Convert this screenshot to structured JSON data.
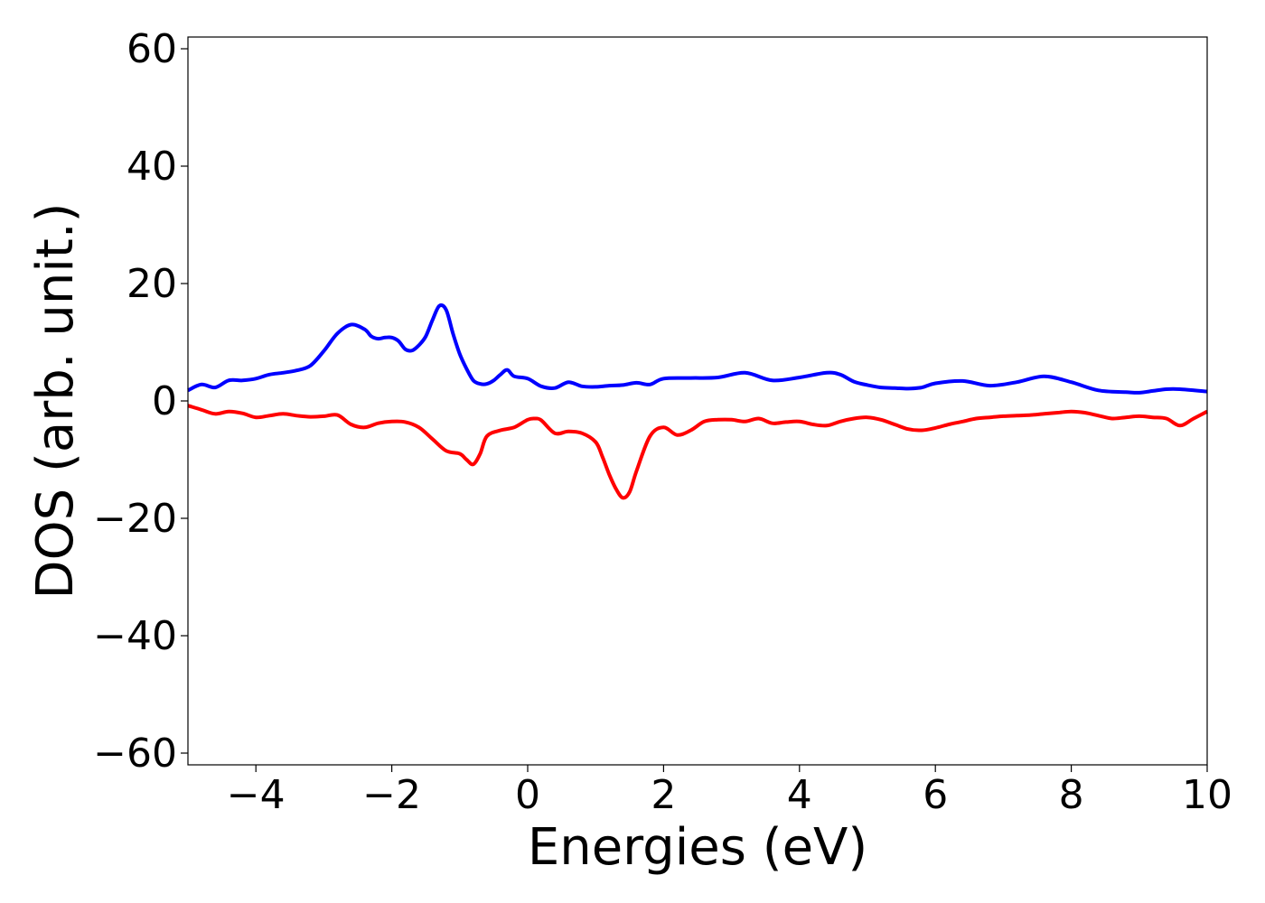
{
  "chart_data": {
    "type": "line",
    "title": "",
    "xlabel": "Energies (eV)",
    "ylabel": "DOS (arb. unit.)",
    "xlim": [
      -5,
      10
    ],
    "ylim": [
      -62,
      62
    ],
    "x_ticks": [
      -4,
      -2,
      0,
      2,
      4,
      6,
      8,
      10
    ],
    "x_tick_labels": [
      "−4",
      "−2",
      "0",
      "2",
      "4",
      "6",
      "8",
      "10"
    ],
    "y_ticks": [
      -60,
      -40,
      -20,
      0,
      20,
      40,
      60
    ],
    "y_tick_labels": [
      "−60",
      "−40",
      "−20",
      "0",
      "20",
      "40",
      "60"
    ],
    "grid": false,
    "series": [
      {
        "color": "#0000ff",
        "x": [
          -5.0,
          -4.8,
          -4.6,
          -4.4,
          -4.2,
          -4.0,
          -3.8,
          -3.6,
          -3.4,
          -3.2,
          -3.0,
          -2.8,
          -2.6,
          -2.4,
          -2.3,
          -2.2,
          -2.1,
          -2.0,
          -1.9,
          -1.8,
          -1.7,
          -1.6,
          -1.5,
          -1.4,
          -1.3,
          -1.2,
          -1.1,
          -1.0,
          -0.9,
          -0.8,
          -0.7,
          -0.6,
          -0.5,
          -0.4,
          -0.3,
          -0.2,
          0.0,
          0.2,
          0.4,
          0.6,
          0.8,
          1.0,
          1.2,
          1.4,
          1.6,
          1.8,
          2.0,
          2.4,
          2.8,
          3.2,
          3.6,
          4.0,
          4.4,
          4.6,
          4.8,
          5.0,
          5.2,
          5.4,
          5.6,
          5.8,
          6.0,
          6.4,
          6.8,
          7.2,
          7.6,
          8.0,
          8.4,
          8.8,
          9.0,
          9.2,
          9.4,
          9.6,
          10.0
        ],
        "values": [
          1.8,
          2.8,
          2.3,
          3.5,
          3.5,
          3.8,
          4.5,
          4.8,
          5.2,
          6.0,
          8.5,
          11.5,
          13.0,
          12.2,
          11.0,
          10.6,
          10.8,
          10.8,
          10.2,
          8.8,
          8.6,
          9.5,
          11.0,
          13.8,
          16.2,
          15.5,
          11.5,
          8.0,
          5.5,
          3.5,
          2.9,
          2.9,
          3.5,
          4.5,
          5.3,
          4.2,
          3.8,
          2.5,
          2.2,
          3.2,
          2.5,
          2.4,
          2.6,
          2.7,
          3.1,
          2.8,
          3.8,
          3.9,
          4.0,
          4.8,
          3.5,
          4.0,
          4.8,
          4.5,
          3.3,
          2.7,
          2.3,
          2.2,
          2.1,
          2.3,
          3.0,
          3.4,
          2.6,
          3.2,
          4.2,
          3.2,
          1.8,
          1.5,
          1.4,
          1.7,
          2.0,
          2.0,
          1.6
        ]
      },
      {
        "color": "#ff0000",
        "x": [
          -5.0,
          -4.8,
          -4.6,
          -4.4,
          -4.2,
          -4.0,
          -3.8,
          -3.6,
          -3.4,
          -3.2,
          -3.0,
          -2.8,
          -2.6,
          -2.4,
          -2.2,
          -2.0,
          -1.8,
          -1.6,
          -1.4,
          -1.2,
          -1.0,
          -0.9,
          -0.8,
          -0.7,
          -0.6,
          -0.4,
          -0.2,
          0.0,
          0.1,
          0.2,
          0.4,
          0.6,
          0.8,
          1.0,
          1.1,
          1.2,
          1.3,
          1.4,
          1.5,
          1.6,
          1.8,
          2.0,
          2.2,
          2.4,
          2.6,
          2.8,
          3.0,
          3.2,
          3.4,
          3.6,
          3.8,
          4.0,
          4.2,
          4.4,
          4.6,
          4.8,
          5.0,
          5.2,
          5.4,
          5.6,
          5.8,
          6.0,
          6.2,
          6.4,
          6.6,
          6.8,
          7.0,
          7.2,
          7.4,
          7.6,
          7.8,
          8.0,
          8.2,
          8.4,
          8.6,
          8.8,
          9.0,
          9.2,
          9.4,
          9.6,
          9.8,
          10.0
        ],
        "values": [
          -0.8,
          -1.5,
          -2.2,
          -1.8,
          -2.1,
          -2.8,
          -2.5,
          -2.2,
          -2.5,
          -2.7,
          -2.6,
          -2.4,
          -4.0,
          -4.5,
          -3.8,
          -3.5,
          -3.6,
          -4.5,
          -6.5,
          -8.5,
          -9.0,
          -10.0,
          -10.8,
          -9.0,
          -6.0,
          -5.0,
          -4.5,
          -3.2,
          -3.0,
          -3.3,
          -5.5,
          -5.2,
          -5.5,
          -7.0,
          -9.5,
          -12.5,
          -15.0,
          -16.5,
          -15.5,
          -12.0,
          -6.0,
          -4.5,
          -5.8,
          -5.0,
          -3.5,
          -3.2,
          -3.2,
          -3.5,
          -3.0,
          -3.8,
          -3.6,
          -3.5,
          -4.0,
          -4.2,
          -3.5,
          -3.0,
          -2.8,
          -3.2,
          -4.0,
          -4.8,
          -5.0,
          -4.6,
          -4.0,
          -3.5,
          -3.0,
          -2.8,
          -2.6,
          -2.5,
          -2.4,
          -2.2,
          -2.0,
          -1.8,
          -2.0,
          -2.5,
          -3.0,
          -2.8,
          -2.6,
          -2.8,
          -3.0,
          -4.2,
          -3.0,
          -1.8
        ]
      }
    ]
  }
}
